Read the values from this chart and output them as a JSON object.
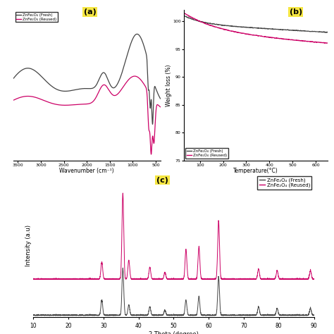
{
  "panel_label_color": "#f5e642",
  "fresh_color": "#444444",
  "reused_color": "#cc0066",
  "legend_fresh": "ZnFe₂O₄ (Fresh)",
  "legend_reused": "ZnFe₂O₄ (Reused)",
  "panel_a": {
    "label": "(a)",
    "xlabel": "Wavenumber (cm⁻¹)",
    "xlim_left": 3500,
    "xlim_right": 400,
    "xticks": [
      3500,
      3000,
      2500,
      2000,
      1500,
      1000,
      500
    ]
  },
  "panel_b": {
    "label": "(b)",
    "xlabel": "Temperature(°C)",
    "ylabel": "Weight loss (%)",
    "xlim": [
      30,
      650
    ],
    "ylim": [
      75,
      102
    ],
    "xticks": [
      100,
      200,
      300,
      400,
      500,
      600
    ],
    "yticks": [
      75,
      80,
      85,
      90,
      95,
      100
    ]
  },
  "panel_c": {
    "label": "(c)",
    "xlabel": "2 Theta (degree)",
    "ylabel": "Intensity (a.u)",
    "xlim": [
      10,
      90
    ],
    "xticks": [
      10,
      20,
      30,
      40,
      50,
      60,
      70,
      80,
      90
    ],
    "xrd_peaks": [
      29.5,
      35.5,
      37.2,
      43.2,
      47.5,
      53.5,
      57.2,
      62.8,
      74.2,
      79.5,
      89.0
    ],
    "xrd_peak_heights_fresh": [
      0.18,
      0.55,
      0.12,
      0.1,
      0.06,
      0.18,
      0.22,
      0.45,
      0.1,
      0.08,
      0.08
    ],
    "xrd_peak_heights_reused": [
      0.2,
      1.0,
      0.22,
      0.14,
      0.08,
      0.35,
      0.38,
      0.68,
      0.12,
      0.1,
      0.1
    ]
  },
  "background_color": "#ffffff"
}
